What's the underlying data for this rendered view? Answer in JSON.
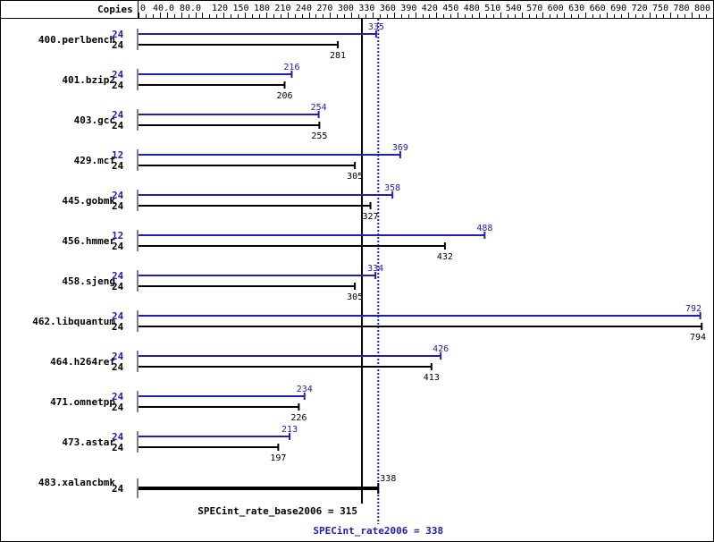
{
  "chart_data": {
    "type": "bar",
    "orientation": "horizontal",
    "copies_header": "Copies",
    "xlim": [
      0,
      800
    ],
    "tick_labels": [
      "0",
      "40.0",
      "80.0",
      "120",
      "150",
      "180",
      "210",
      "240",
      "270",
      "300",
      "330",
      "360",
      "390",
      "420",
      "450",
      "480",
      "510",
      "540",
      "570",
      "600",
      "630",
      "660",
      "690",
      "720",
      "750",
      "780",
      "800"
    ],
    "tick_values": [
      0,
      40,
      80,
      120,
      150,
      180,
      210,
      240,
      270,
      300,
      330,
      360,
      390,
      420,
      450,
      480,
      510,
      540,
      570,
      600,
      630,
      660,
      690,
      720,
      750,
      780,
      800
    ],
    "colors": {
      "base": "#000000",
      "peak": "#2020b0"
    },
    "benchmarks": [
      {
        "name": "400.perlbench",
        "peak_copies": "24",
        "peak": 335,
        "base_copies": "24",
        "base": 281
      },
      {
        "name": "401.bzip2",
        "peak_copies": "24",
        "peak": 216,
        "base_copies": "24",
        "base": 206
      },
      {
        "name": "403.gcc",
        "peak_copies": "24",
        "peak": 254,
        "base_copies": "24",
        "base": 255
      },
      {
        "name": "429.mcf",
        "peak_copies": "12",
        "peak": 369,
        "base_copies": "24",
        "base": 305
      },
      {
        "name": "445.gobmk",
        "peak_copies": "24",
        "peak": 358,
        "base_copies": "24",
        "base": 327
      },
      {
        "name": "456.hmmer",
        "peak_copies": "12",
        "peak": 488,
        "base_copies": "24",
        "base": 432
      },
      {
        "name": "458.sjeng",
        "peak_copies": "24",
        "peak": 334,
        "base_copies": "24",
        "base": 305
      },
      {
        "name": "462.libquantum",
        "peak_copies": "24",
        "peak": 792,
        "base_copies": "24",
        "base": 794
      },
      {
        "name": "464.h264ref",
        "peak_copies": "24",
        "peak": 426,
        "base_copies": "24",
        "base": 413
      },
      {
        "name": "471.omnetpp",
        "peak_copies": "24",
        "peak": 234,
        "base_copies": "24",
        "base": 226
      },
      {
        "name": "473.astar",
        "peak_copies": "24",
        "peak": 213,
        "base_copies": "24",
        "base": 197
      },
      {
        "name": "483.xalancbmk",
        "peak_copies": null,
        "peak": 338,
        "base_copies": "24",
        "base": 338
      }
    ],
    "base_summary": {
      "label": "SPECint_rate_base2006 = 315",
      "value": 315
    },
    "peak_summary": {
      "label": "SPECint_rate2006 = 338",
      "value": 338
    }
  }
}
